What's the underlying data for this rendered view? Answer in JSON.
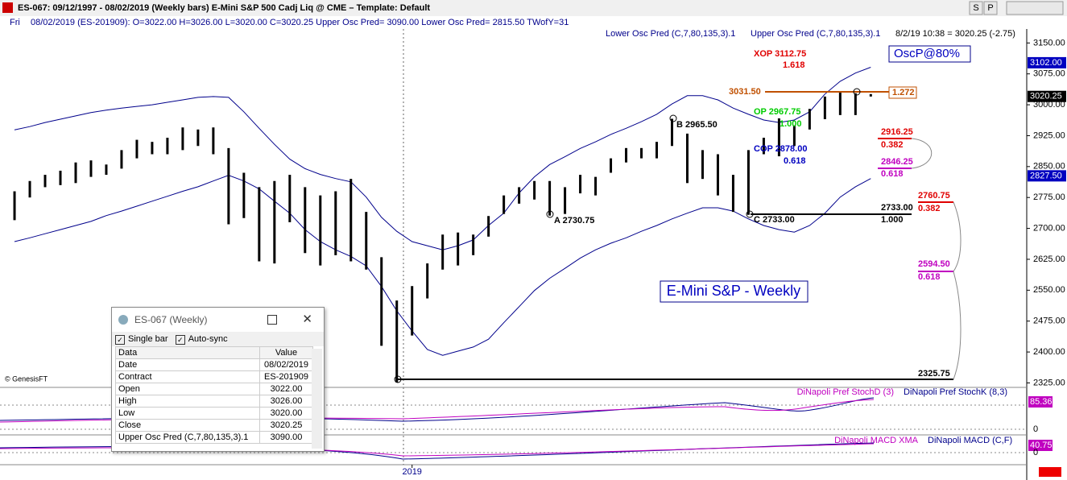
{
  "window": {
    "title": "ES-067:  09/12/1997 - 08/02/2019  (Weekly bars)   E-Mini S&P 500 Cadj Liq @ CME  –  Template: Default",
    "buttons": [
      "S",
      "P"
    ]
  },
  "info": {
    "day": "Fri",
    "text": "08/02/2019 (ES-201909):  O=3022.00  H=3026.00  L=3020.00  C=3020.25  Upper Osc Pred= 3090.00  Lower Osc Pred= 2815.50  TWofY=31"
  },
  "chart_data": {
    "type": "range-bar",
    "title": "E-Mini S&P - Weekly",
    "last": "8/2/19 10:38 = 3020.25 (-2.75)",
    "copyright": "© GenesisFT",
    "xlim": [
      -0.95,
      66.2
    ],
    "xticks": [
      {
        "value": 26,
        "label": "2019"
      }
    ],
    "ylim": [
      2320,
      3180
    ],
    "yticks": [
      {
        "value": 3150,
        "label": "3150.00"
      },
      {
        "value": 3075,
        "label": "3075.00"
      },
      {
        "value": 3000,
        "label": "3000.00"
      },
      {
        "value": 2925,
        "label": "2925.00"
      },
      {
        "value": 2850,
        "label": "2850.00"
      },
      {
        "value": 2775,
        "label": "2775.00"
      },
      {
        "value": 2700,
        "label": "2700.00"
      },
      {
        "value": 2625,
        "label": "2625.00"
      },
      {
        "value": 2550,
        "label": "2550.00"
      },
      {
        "value": 2475,
        "label": "2475.00"
      },
      {
        "value": 2400,
        "label": "2400.00"
      },
      {
        "value": 2325,
        "label": "2325.00"
      }
    ],
    "bar_color": "#000000",
    "highs": [
      2790,
      2815,
      2830,
      2840,
      2860,
      2865,
      2855,
      2890,
      2915,
      2910,
      2920,
      2945,
      2940,
      2945,
      2895,
      2835,
      2800,
      2815,
      2830,
      2800,
      2780,
      2790,
      2820,
      2740,
      2630,
      2525,
      2560,
      2615,
      2685,
      2690,
      2685,
      2730,
      2780,
      2800,
      2815,
      2815,
      2800,
      2830,
      2825,
      2870,
      2895,
      2895,
      2910,
      2966,
      2930,
      2890,
      2880,
      2830,
      2890,
      2920,
      2967,
      2950,
      2990,
      3020,
      3030,
      3028,
      3026
    ],
    "lows": [
      2720,
      2775,
      2800,
      2805,
      2810,
      2825,
      2830,
      2845,
      2870,
      2880,
      2880,
      2890,
      2900,
      2880,
      2710,
      2725,
      2620,
      2615,
      2715,
      2640,
      2610,
      2635,
      2620,
      2600,
      2415,
      2326,
      2440,
      2530,
      2600,
      2610,
      2635,
      2680,
      2735,
      2760,
      2770,
      2731,
      2735,
      2785,
      2780,
      2835,
      2860,
      2870,
      2870,
      2900,
      2810,
      2820,
      2780,
      2740,
      2733,
      2880,
      2875,
      2900,
      2940,
      2965,
      2975,
      2975,
      3020
    ],
    "series": [
      {
        "name": "Lower Osc Pred (C,7,80,135,3).1",
        "color": "#00008b",
        "values": [
          2668,
          2677,
          2687,
          2697,
          2707,
          2717,
          2731,
          2742,
          2754,
          2766,
          2778,
          2790,
          2801,
          2815,
          2829,
          2815,
          2796,
          2766,
          2737,
          2697,
          2668,
          2648,
          2632,
          2609,
          2559,
          2500,
          2451,
          2406,
          2392,
          2402,
          2412,
          2431,
          2471,
          2510,
          2549,
          2579,
          2603,
          2628,
          2648,
          2664,
          2677,
          2693,
          2707,
          2723,
          2737,
          2750,
          2750,
          2742,
          2723,
          2707,
          2697,
          2691,
          2707,
          2737,
          2776,
          2801,
          2821
        ]
      },
      {
        "name": "Upper Osc Pred (C,7,80,135,3).1",
        "color": "#00008b",
        "values": [
          2939,
          2947,
          2957,
          2965,
          2973,
          2981,
          2987,
          2992,
          2996,
          3000,
          3006,
          3012,
          3018,
          3020,
          3018,
          2983,
          2943,
          2904,
          2868,
          2845,
          2831,
          2821,
          2813,
          2776,
          2727,
          2693,
          2668,
          2658,
          2648,
          2658,
          2672,
          2707,
          2737,
          2786,
          2825,
          2855,
          2874,
          2894,
          2910,
          2928,
          2943,
          2959,
          2977,
          3002,
          3022,
          3022,
          3012,
          2992,
          2977,
          2963,
          2957,
          2963,
          2983,
          3026,
          3057,
          3077,
          3091
        ]
      }
    ],
    "axis_markers": [
      {
        "value": 3102,
        "label": "3102.00",
        "color": "#0000c0"
      },
      {
        "value": 3020.25,
        "label": "3020.25",
        "color": "#000000"
      },
      {
        "value": 2827.5,
        "label": "2827.50",
        "color": "#0000c0"
      }
    ],
    "annotations": [
      "XOP 3112.75",
      "1.618",
      "OscP@80%",
      "3031.50",
      "1.272",
      "OP 2967.75",
      "1.000",
      "COP 2878.00",
      "0.618",
      "B 2965.50",
      "A 2730.75",
      "C 2733.00",
      "2733.00",
      "1.000",
      "2916.25",
      "0.382",
      "2846.25",
      "0.618",
      "2760.75",
      "0.382",
      "2594.50",
      "0.618",
      "2325.75"
    ]
  },
  "stoch": {
    "labels": [
      "DiNapoli Pref StochD (3)",
      "DiNapoli Pref StochK (8,3)"
    ],
    "ticks": [
      "85.36",
      "0"
    ]
  },
  "macd": {
    "labels": [
      "DiNapoli MACD XMA",
      "DiNapoli MACD (C,F)"
    ],
    "ticks": [
      "40.75",
      "0"
    ]
  },
  "data_window": {
    "title": "ES-067 (Weekly)",
    "options": [
      "Single bar",
      "Auto-sync"
    ],
    "header": [
      "Data",
      "Value"
    ],
    "rows": [
      [
        "Date",
        "08/02/2019"
      ],
      [
        "Contract",
        "ES-201909"
      ],
      [
        "Open",
        "3022.00"
      ],
      [
        "High",
        "3026.00"
      ],
      [
        "Low",
        "3020.00"
      ],
      [
        "Close",
        "3020.25"
      ],
      [
        "Upper Osc Pred (C,7,80,135,3).1",
        "3090.00"
      ]
    ]
  }
}
